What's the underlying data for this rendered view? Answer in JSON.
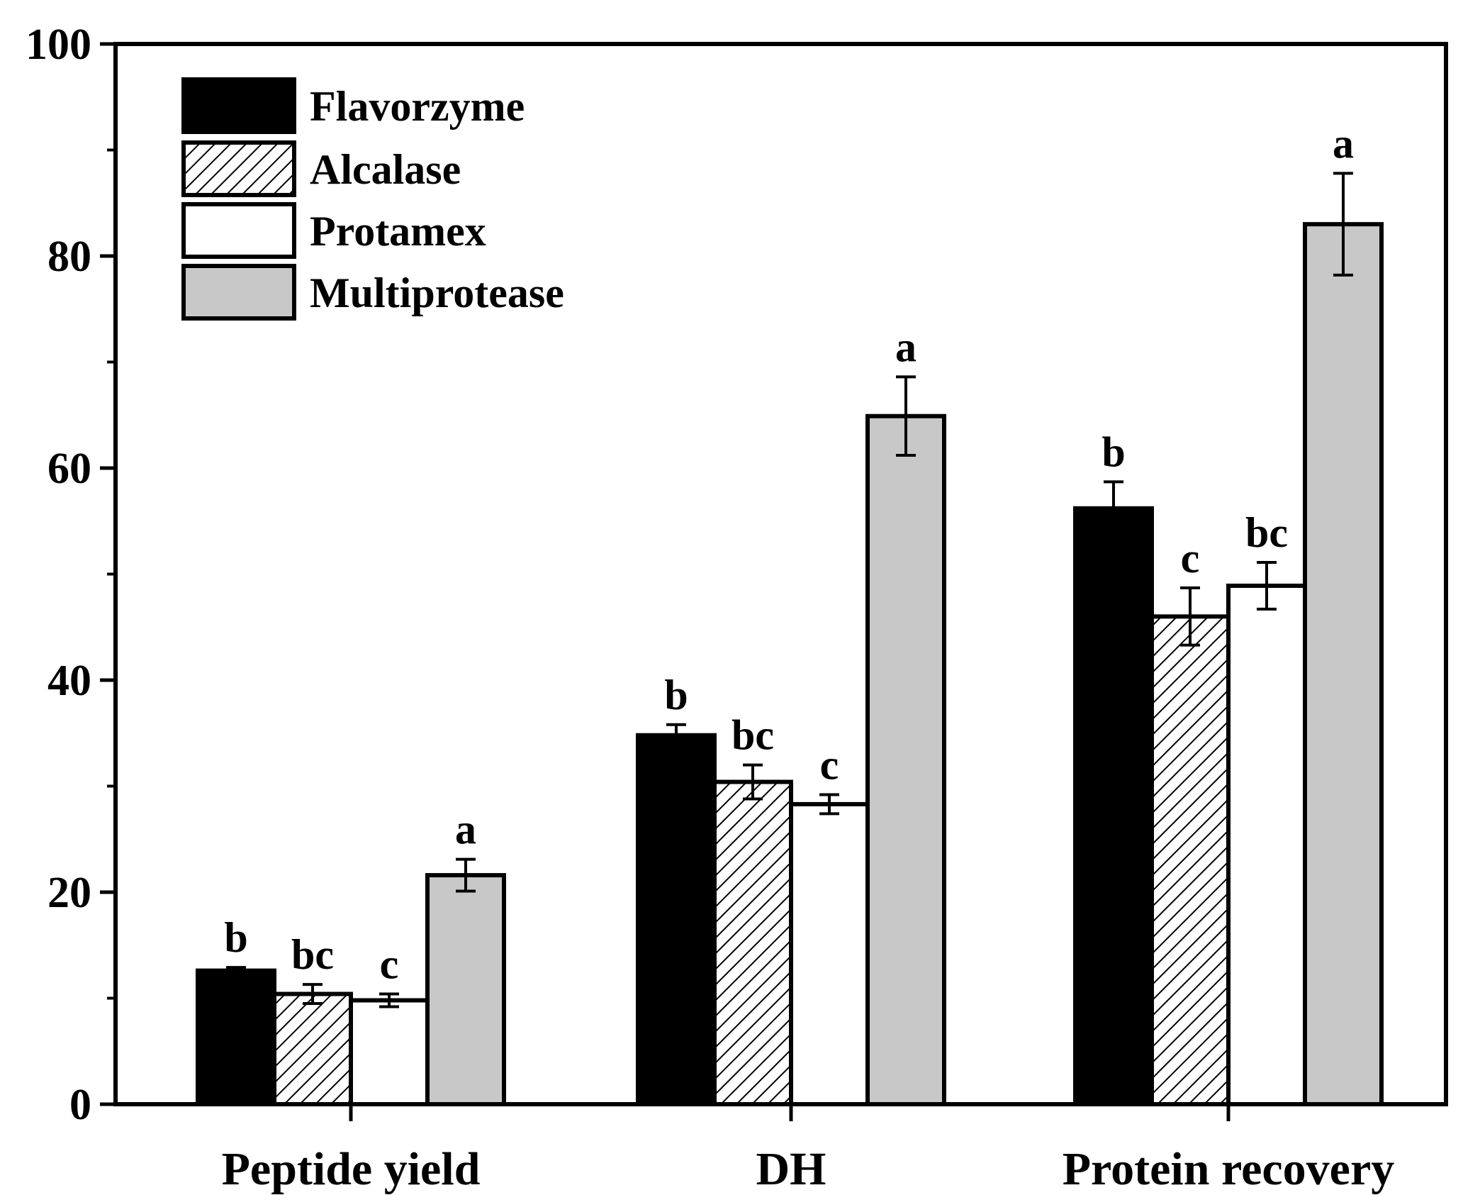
{
  "chart_data": {
    "type": "bar",
    "title": "",
    "xlabel": "",
    "ylabel": "",
    "ylim": [
      0,
      100
    ],
    "yticks": [
      0,
      20,
      40,
      60,
      80,
      100
    ],
    "categories": [
      "Peptide yield",
      "DH",
      "Protein recovery"
    ],
    "legend_position": "top-left",
    "series": [
      {
        "name": "Flavorzyme",
        "fill": "black",
        "values": [
          12.6,
          34.8,
          56.2
        ],
        "errors": [
          0.3,
          1.0,
          2.5
        ],
        "labels": [
          "b",
          "b",
          "b"
        ]
      },
      {
        "name": "Alcalase",
        "fill": "hatched",
        "values": [
          10.4,
          30.4,
          46.0
        ],
        "errors": [
          0.9,
          1.6,
          2.7
        ],
        "labels": [
          "bc",
          "bc",
          "c"
        ]
      },
      {
        "name": "Protamex",
        "fill": "white",
        "values": [
          9.8,
          28.3,
          48.9
        ],
        "errors": [
          0.6,
          0.9,
          2.2
        ],
        "labels": [
          "c",
          "c",
          "bc"
        ]
      },
      {
        "name": "Multiprotease",
        "fill": "gray",
        "values": [
          21.6,
          64.9,
          83.0
        ],
        "errors": [
          1.5,
          3.7,
          4.8
        ],
        "labels": [
          "a",
          "a",
          "a"
        ]
      }
    ]
  },
  "colors": {
    "black": "#000000",
    "gray": "#c8c8c8",
    "white": "#ffffff",
    "axis": "#000000"
  }
}
